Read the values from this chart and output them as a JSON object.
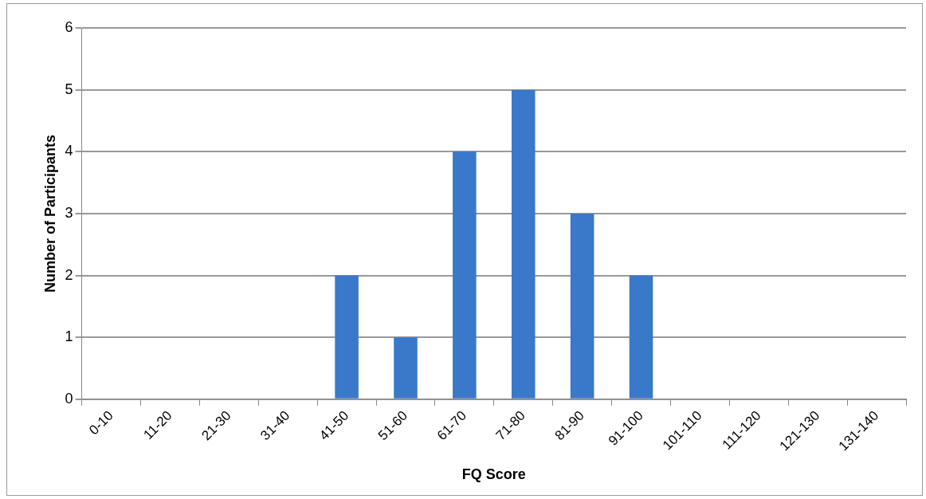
{
  "chart_data": {
    "type": "bar",
    "categories": [
      "0-10",
      "11-20",
      "21-30",
      "31-40",
      "41-50",
      "51-60",
      "61-70",
      "71-80",
      "81-90",
      "91-100",
      "101-110",
      "111-120",
      "121-130",
      "131-140"
    ],
    "values": [
      0,
      0,
      0,
      0,
      2,
      1,
      4,
      5,
      3,
      2,
      0,
      0,
      0,
      0
    ],
    "color": "#3a78c9",
    "xlabel": "FQ Score",
    "ylabel": "Number of Participants",
    "ylim": [
      0,
      6
    ],
    "yticks": [
      0,
      1,
      2,
      3,
      4,
      5,
      6
    ],
    "grid": "y",
    "legend": false
  }
}
